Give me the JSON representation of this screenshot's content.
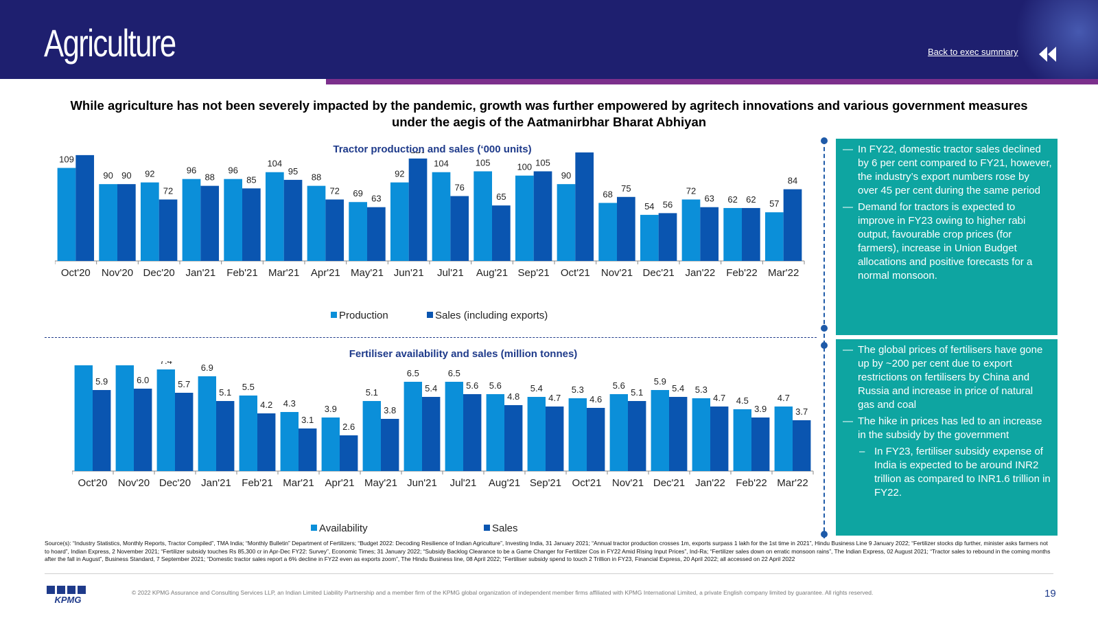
{
  "header": {
    "title": "Agriculture",
    "back_link": "Back to exec summary"
  },
  "headline": "While agriculture has not been severely impacted by the pandemic, growth was further empowered by agritech innovations and various government measures under the aegis of the Aatmanirbhar Bharat Abhiyan",
  "colors": {
    "header_bg": "#1e1f6f",
    "accent": "#7c2f8c",
    "series_light": "#0b8fd9",
    "series_dark": "#0a55b0",
    "panel": "#0ea5a1"
  },
  "chart_data": [
    {
      "type": "bar",
      "title": "Tractor production and sales (‘000 units)",
      "categories": [
        "Oct'20",
        "Nov'20",
        "Dec'20",
        "Jan'21",
        "Feb'21",
        "Mar'21",
        "Apr'21",
        "May'21",
        "Jun'21",
        "Jul'21",
        "Aug'21",
        "Sep'21",
        "Oct'21",
        "Nov'21",
        "Dec'21",
        "Jan'22",
        "Feb'22",
        "Mar'22"
      ],
      "series": [
        {
          "name": "Production",
          "values": [
            109,
            90,
            92,
            96,
            96,
            104,
            88,
            69,
            92,
            104,
            105,
            100,
            90,
            68,
            54,
            72,
            62,
            57
          ]
        },
        {
          "name": "Sales (including exports)",
          "values": [
            124,
            90,
            72,
            88,
            85,
            95,
            72,
            63,
            120,
            76,
            65,
            105,
            128,
            75,
            56,
            63,
            62,
            84
          ]
        }
      ],
      "ylim": [
        0,
        140
      ],
      "legend": "bottom"
    },
    {
      "type": "bar",
      "title": "Fertiliser availability and sales (million tonnes)",
      "categories": [
        "Oct'20",
        "Nov'20",
        "Dec'20",
        "Jan'21",
        "Feb'21",
        "Mar'21",
        "Apr'21",
        "May'21",
        "Jun'21",
        "Jul'21",
        "Aug'21",
        "Sep'21",
        "Oct'21",
        "Nov'21",
        "Dec'21",
        "Jan'22",
        "Feb'22",
        "Mar'22"
      ],
      "series": [
        {
          "name": "Availability",
          "values": [
            "7.7",
            "7.7",
            "7.4",
            "6.9",
            "5.5",
            "4.3",
            "3.9",
            "5.1",
            "6.5",
            "6.5",
            "5.6",
            "5.4",
            "5.3",
            "5.6",
            "5.9",
            "5.3",
            "4.5",
            "4.7"
          ]
        },
        {
          "name": "Sales",
          "values": [
            "5.9",
            "6.0",
            "5.7",
            "5.1",
            "4.2",
            "3.1",
            "2.6",
            "3.8",
            "5.4",
            "5.6",
            "4.8",
            "4.7",
            "4.6",
            "5.1",
            "5.4",
            "4.7",
            "3.9",
            "3.7"
          ]
        }
      ],
      "ylim": [
        0,
        8.5
      ],
      "legend": "bottom"
    }
  ],
  "panels": {
    "tractor": [
      "In FY22, domestic tractor sales declined by 6 per cent compared to FY21, however, the industry’s export numbers rose by over 45 per cent during the same period",
      "Demand for tractors is expected to improve in FY23 owing to higher rabi output, favourable crop prices (for farmers), increase in Union Budget allocations and positive forecasts for a normal monsoon."
    ],
    "fertiliser": [
      "The global prices of fertilisers have gone up by ~200 per cent due to export restrictions on fertilisers by China and Russia and increase in price of natural gas and coal",
      "The hike in prices has led to an increase in the subsidy by the government"
    ],
    "fertiliser_sub": "In FY23, fertiliser subsidy expense of India is expected to be around INR2 trillion as compared to INR1.6 trillion in FY22."
  },
  "sources": "Source(s): “Industry Statistics, Monthly Reports, Tractor Compiled”, TMA India; “Monthly Bulletin” Department of Fertilizers; “Budget 2022: Decoding Resilience of Indian Agriculture”, Investing India, 31 January 2021; “Annual tractor production crosses 1m, exports surpass 1 lakh for the 1st time in 2021”, Hindu Business Line 9 January 2022; “Fertilizer stocks dip further, minister asks farmers not to hoard”, Indian Express, 2 November 2021; “Fertilizer subsidy touches Rs 85,300 cr in Apr-Dec FY22: Survey”, Economic Times; 31 January 2022; “Subsidy Backlog Clearance to be a Game Changer for Fertilizer Cos in FY22 Amid Rising Input Prices”, Ind-Ra; “Fertilizer sales down on erratic monsoon rains”, The Indian Express, 02 August 2021; “Tractor sales to rebound in the coming months after the fall in August”, Business Standard, 7 September 2021; “Domestic tractor sales report a 6% decline in FY22 even as exports zoom”, The Hindu Business line, 08 April 2022; “Fertiliser subsidy spend to touch 2 Trillion in FY23, Financial Express, 20 April 2022; all accessed on 22 April 2022",
  "footer": {
    "logo_text": "KPMG",
    "copyright": "© 2022 KPMG Assurance and Consulting Services LLP, an Indian Limited Liability Partnership and a member firm of the KPMG global organization of independent member firms affiliated with KPMG International Limited, a private English company limited by guarantee. All rights reserved.",
    "page_number": "19"
  }
}
